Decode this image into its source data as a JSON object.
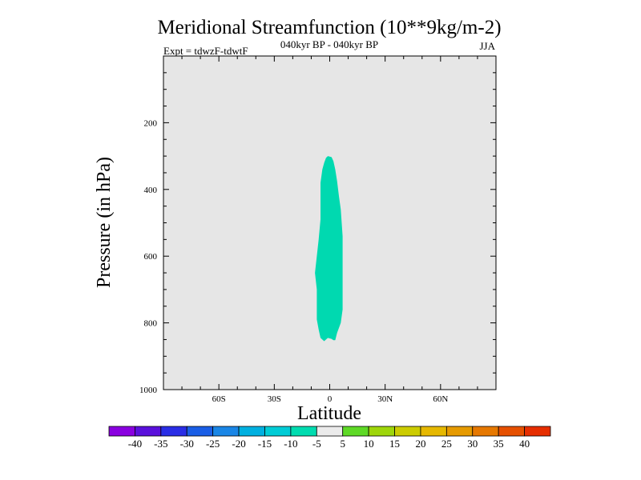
{
  "chart_data": {
    "type": "heatmap",
    "title": "Meridional Streamfunction (10**9kg/m-2)",
    "subtitle_center": "040kyr BP - 040kyr BP",
    "subtitle_left": "Expt = tdwzF-tdwtF",
    "subtitle_right": "JJA",
    "xlabel": "Latitude",
    "ylabel": "Pressure (in hPa)",
    "xlim": [
      -90,
      90
    ],
    "ylim": [
      1000,
      0
    ],
    "x_ticks": [
      {
        "value": -60,
        "label": "60S"
      },
      {
        "value": -30,
        "label": "30S"
      },
      {
        "value": 0,
        "label": "0"
      },
      {
        "value": 30,
        "label": "30N"
      },
      {
        "value": 60,
        "label": "60N"
      }
    ],
    "y_ticks": [
      {
        "value": 200,
        "label": "200"
      },
      {
        "value": 400,
        "label": "400"
      },
      {
        "value": 600,
        "label": "600"
      },
      {
        "value": 800,
        "label": "800"
      },
      {
        "value": 1000,
        "label": "1000"
      }
    ],
    "background_fill": "#e6e6e6",
    "background_range": "-5 to 5",
    "contour_regions": [
      {
        "range": "-10 to -5",
        "color": "#00d9b0",
        "outline": [
          [
            -1,
            300
          ],
          [
            1,
            303
          ],
          [
            2,
            315
          ],
          [
            3,
            340
          ],
          [
            4,
            375
          ],
          [
            5,
            420
          ],
          [
            6,
            460
          ],
          [
            7,
            540
          ],
          [
            7,
            620
          ],
          [
            7,
            700
          ],
          [
            7,
            760
          ],
          [
            6,
            800
          ],
          [
            4,
            830
          ],
          [
            3,
            852
          ],
          [
            2,
            852
          ],
          [
            1,
            848
          ],
          [
            -1,
            845
          ],
          [
            -2,
            850
          ],
          [
            -3,
            855
          ],
          [
            -5,
            845
          ],
          [
            -6,
            820
          ],
          [
            -7,
            790
          ],
          [
            -7,
            740
          ],
          [
            -7,
            700
          ],
          [
            -8,
            650
          ],
          [
            -7,
            600
          ],
          [
            -6,
            550
          ],
          [
            -5,
            490
          ],
          [
            -5,
            430
          ],
          [
            -5,
            380
          ],
          [
            -4,
            340
          ],
          [
            -3,
            320
          ],
          [
            -2,
            305
          ]
        ]
      }
    ],
    "colorbar": {
      "labels": [
        "-40",
        "-35",
        "-30",
        "-25",
        "-20",
        "-15",
        "-10",
        "-5",
        "5",
        "10",
        "15",
        "20",
        "25",
        "30",
        "35",
        "40"
      ],
      "colors": [
        "#8a00e0",
        "#5a10dc",
        "#2a2ee6",
        "#1a5ee6",
        "#1a86e6",
        "#00b0e0",
        "#00ccd6",
        "#00dcb0",
        "#ebebeb",
        "#5ed926",
        "#9ed60a",
        "#cccc00",
        "#e6b800",
        "#e69a00",
        "#e67800",
        "#e65000",
        "#e62e00"
      ]
    }
  }
}
